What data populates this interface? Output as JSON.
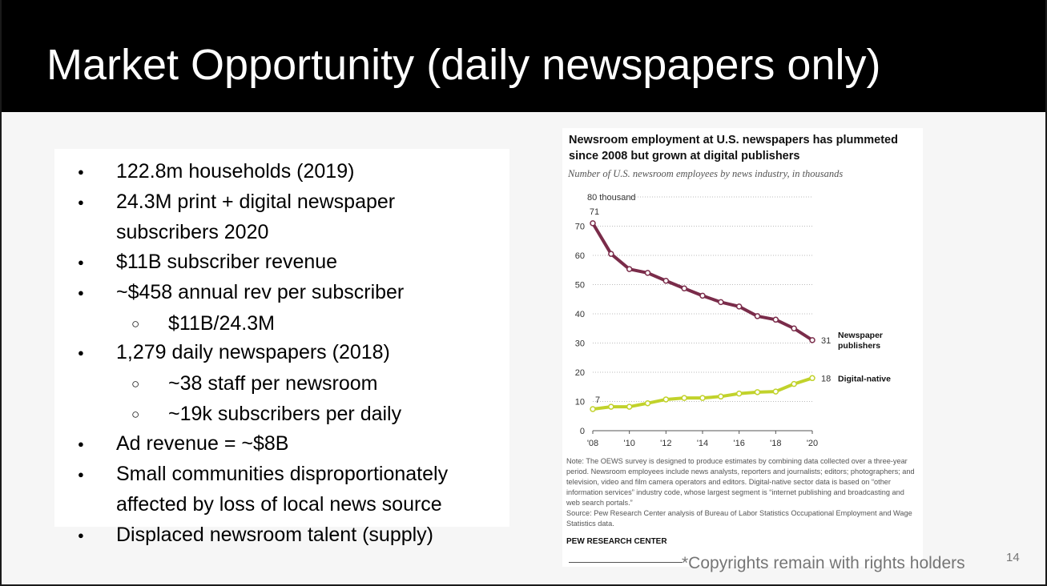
{
  "slide": {
    "title": "Market Opportunity (daily newspapers only)",
    "page_number": "14",
    "copyright": "*Copyrights remain with rights holders"
  },
  "bullets": [
    {
      "level": 1,
      "text": "122.8m households (2019)"
    },
    {
      "level": 1,
      "text": "24.3M print + digital newspaper"
    },
    {
      "level": 1,
      "text": "subscribers 2020",
      "continuation": true
    },
    {
      "level": 1,
      "text": "$11B subscriber revenue"
    },
    {
      "level": 1,
      "text": "~$458 annual rev per subscriber"
    },
    {
      "level": 2,
      "text": "$11B/24.3M"
    },
    {
      "level": 1,
      "text": "1,279 daily newspapers (2018)"
    },
    {
      "level": 2,
      "text": "~38 staff per newsroom"
    },
    {
      "level": 2,
      "text": "~19k subscribers per daily"
    },
    {
      "level": 1,
      "text": "Ad revenue = ~$8B"
    },
    {
      "level": 1,
      "text": "Small communities disproportionately"
    },
    {
      "level": 1,
      "text": "affected by loss of local news source",
      "continuation": true
    },
    {
      "level": 1,
      "text": "Displaced newsroom talent (supply)"
    }
  ],
  "chart_data": {
    "type": "line",
    "title": "Newsroom employment at U.S. newspapers has plummeted since 2008 but grown at digital publishers",
    "subtitle": "Number of U.S. newsroom employees by news industry, in thousands",
    "xlabel": "",
    "ylabel": "",
    "x": [
      2008,
      2009,
      2010,
      2011,
      2012,
      2013,
      2014,
      2015,
      2016,
      2017,
      2018,
      2019,
      2020
    ],
    "xtick_values": [
      2008,
      2010,
      2012,
      2014,
      2016,
      2018,
      2020
    ],
    "xtick_labels": [
      "'08",
      "'10",
      "'12",
      "'14",
      "'16",
      "'18",
      "'20"
    ],
    "ylim": [
      0,
      80
    ],
    "yticks": [
      0,
      10,
      20,
      30,
      40,
      50,
      60,
      70,
      80
    ],
    "ytick_labels": [
      "0",
      "10",
      "20",
      "30",
      "40",
      "50",
      "60",
      "70",
      "80 thousand"
    ],
    "grid": true,
    "series": [
      {
        "name": "Newspaper publishers",
        "label_lines": [
          "Newspaper",
          "publishers"
        ],
        "color": "#7a2c4a",
        "values": [
          71,
          60.5,
          55.3,
          54,
          51.3,
          48.7,
          46.2,
          44,
          42.5,
          39.2,
          38,
          35,
          31
        ],
        "first_label": "71",
        "last_label": "31"
      },
      {
        "name": "Digital-native",
        "label_lines": [
          "Digital-native"
        ],
        "color": "#c1d22b",
        "values": [
          7.4,
          8.2,
          8.2,
          9.4,
          10.7,
          11.2,
          11.2,
          11.7,
          12.7,
          13.2,
          13.4,
          16,
          18
        ],
        "first_label": "7",
        "last_label": "18"
      }
    ],
    "note": "Note: The OEWS survey is designed to produce estimates by combining data collected over a three-year period. Newsroom employees include news analysts, reporters and journalists; editors; photographers; and television, video and film camera operators and editors. Digital-native sector data is based on “other information services” industry code, whose largest segment is “internet publishing and broadcasting and web search portals.”",
    "source": "Source: Pew Research Center analysis of Bureau of Labor Statistics Occupational Employment and Wage Statistics data.",
    "brand": "PEW RESEARCH CENTER"
  }
}
